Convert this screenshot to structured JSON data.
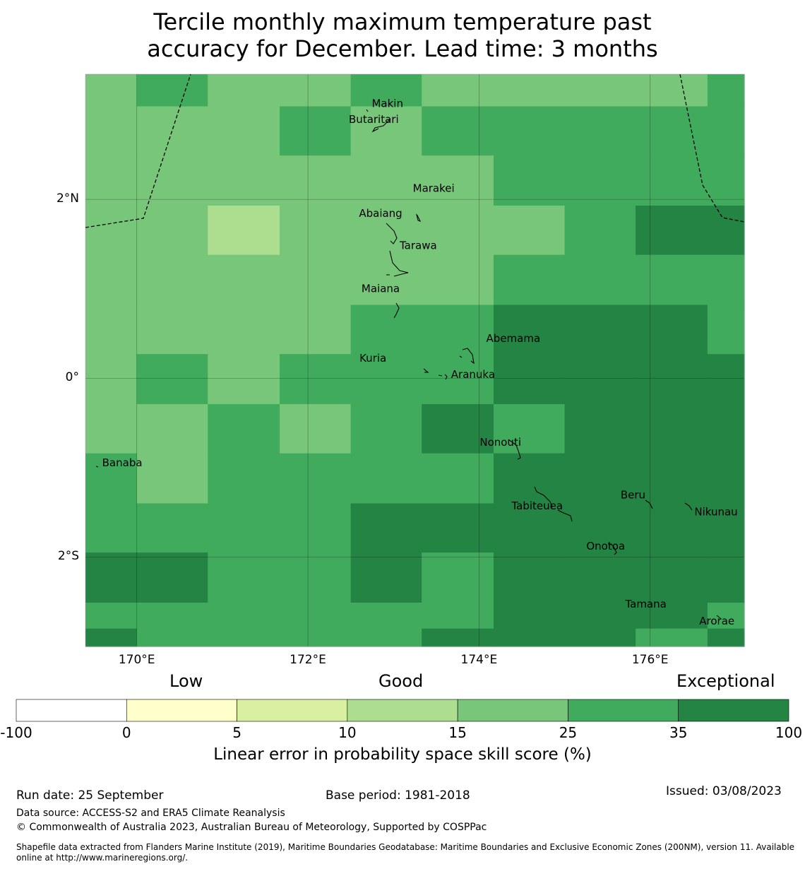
{
  "title_lines": [
    "Tercile monthly maximum temperature past",
    "accuracy for December. Lead time: 3 months"
  ],
  "chart_data": {
    "type": "heatmap",
    "title": "Tercile monthly maximum temperature past accuracy for December. Lead time: 3 months",
    "lon_range": [
      169.4,
      177.1
    ],
    "lat_range": [
      -3.0,
      3.4
    ],
    "x_ticks": [
      {
        "lon": 170,
        "label": "170°E"
      },
      {
        "lon": 172,
        "label": "172°E"
      },
      {
        "lon": 174,
        "label": "174°E"
      },
      {
        "lon": 176,
        "label": "176°E"
      }
    ],
    "y_ticks": [
      {
        "lat": 2,
        "label": "2°N"
      },
      {
        "lat": 0,
        "label": "0°"
      },
      {
        "lat": -2,
        "label": "2°S"
      }
    ],
    "grid_lons": [
      169.4,
      170.0,
      170.83,
      171.67,
      172.5,
      173.33,
      174.17,
      175.0,
      175.83,
      176.67,
      177.1
    ],
    "grid_lats": [
      3.4,
      3.04,
      2.49,
      1.93,
      1.38,
      0.82,
      0.27,
      -0.29,
      -0.84,
      -1.4,
      -1.95,
      -2.51,
      -2.8,
      -3.0
    ],
    "grid_categories": [
      [
        4,
        5,
        4,
        4,
        5,
        4,
        4,
        4,
        4,
        5
      ],
      [
        4,
        4,
        4,
        5,
        4,
        5,
        5,
        5,
        5,
        5
      ],
      [
        4,
        4,
        4,
        4,
        4,
        4,
        5,
        5,
        5,
        5
      ],
      [
        4,
        4,
        3,
        4,
        4,
        4,
        4,
        5,
        6,
        6
      ],
      [
        4,
        4,
        4,
        4,
        4,
        4,
        5,
        5,
        5,
        5
      ],
      [
        4,
        4,
        4,
        4,
        5,
        5,
        6,
        6,
        6,
        5
      ],
      [
        4,
        5,
        4,
        5,
        5,
        5,
        6,
        6,
        6,
        6
      ],
      [
        4,
        4,
        5,
        4,
        5,
        6,
        5,
        6,
        6,
        6
      ],
      [
        5,
        4,
        5,
        5,
        5,
        5,
        6,
        6,
        6,
        6
      ],
      [
        5,
        5,
        5,
        5,
        6,
        6,
        6,
        6,
        6,
        6
      ],
      [
        6,
        6,
        5,
        5,
        6,
        5,
        6,
        6,
        6,
        6
      ],
      [
        5,
        5,
        5,
        5,
        5,
        5,
        6,
        6,
        6,
        5
      ],
      [
        6,
        5,
        5,
        5,
        5,
        6,
        6,
        6,
        5,
        6
      ]
    ],
    "places": [
      {
        "name": "Makin",
        "lon": 172.93,
        "lat": 3.07
      },
      {
        "name": "Butaritari",
        "lon": 172.77,
        "lat": 2.89
      },
      {
        "name": "Marakei",
        "lon": 173.47,
        "lat": 2.12
      },
      {
        "name": "Abaiang",
        "lon": 172.85,
        "lat": 1.84
      },
      {
        "name": "Tarawa",
        "lon": 173.29,
        "lat": 1.48
      },
      {
        "name": "Maiana",
        "lon": 172.85,
        "lat": 1.0
      },
      {
        "name": "Abemama",
        "lon": 174.4,
        "lat": 0.44
      },
      {
        "name": "Kuria",
        "lon": 172.76,
        "lat": 0.22
      },
      {
        "name": "Aranuka",
        "lon": 173.93,
        "lat": 0.04
      },
      {
        "name": "Nonouti",
        "lon": 174.25,
        "lat": -0.72
      },
      {
        "name": "Banaba",
        "lon": 169.83,
        "lat": -0.95
      },
      {
        "name": "Beru",
        "lon": 175.8,
        "lat": -1.31
      },
      {
        "name": "Tabiteuea",
        "lon": 174.68,
        "lat": -1.43
      },
      {
        "name": "Nikunau",
        "lon": 176.77,
        "lat": -1.5
      },
      {
        "name": "Onotoa",
        "lon": 175.48,
        "lat": -1.88
      },
      {
        "name": "Tamana",
        "lon": 175.95,
        "lat": -2.53
      },
      {
        "name": "Arorae",
        "lon": 176.78,
        "lat": -2.72
      }
    ],
    "colorbar": {
      "boundaries": [
        "-100",
        "0",
        "5",
        "10",
        "15",
        "25",
        "35",
        "100"
      ],
      "colors": [
        "#ffffff",
        "#ffffcc",
        "#d9f0a3",
        "#addd8e",
        "#78c679",
        "#41ab5d",
        "#238443"
      ],
      "category_labels": [
        "Low",
        "Good",
        "Exceptional"
      ],
      "label": "Linear error in probability space skill score (%)"
    }
  },
  "footer": {
    "run_date": "Run date: 25 September",
    "base_period": "Base period: 1981-2018",
    "issued": "Issued: 03/08/2023",
    "data_source": "Data source: ACCESS-S2 and ERA5 Climate Reanalysis",
    "copyright": "© Commonwealth of Australia 2023, Australian Bureau of Meteorology, Supported by COSPPac",
    "shapefile": "Shapefile data extracted from Flanders Marine Institute (2019), Maritime Boundaries Geodatabase: Maritime Boundaries and Exclusive Economic Zones (200NM), version 11. Available online at http://www.marineregions.org/."
  }
}
